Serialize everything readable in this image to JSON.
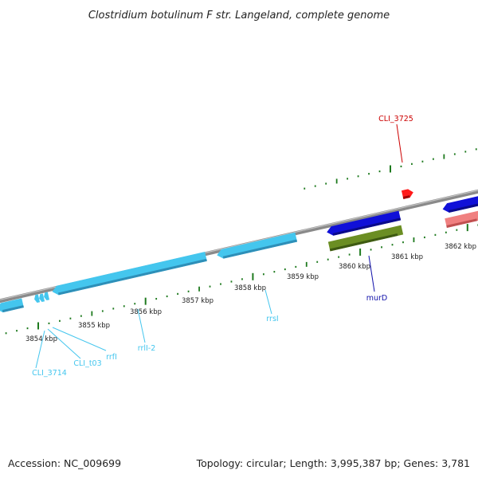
{
  "title": "Clostridium botulinum F str. Langeland, complete genome",
  "footer": {
    "accession": "Accession: NC_009699",
    "info": "Topology: circular; Length: 3,995,387 bp; Genes: 3,781"
  },
  "ticks": {
    "unit": "kbp",
    "labels": [
      "3854 kbp",
      "3855 kbp",
      "3856 kbp",
      "3857 kbp",
      "3858 kbp",
      "3859 kbp",
      "3860 kbp",
      "3861 kbp",
      "3862 kbp"
    ]
  },
  "colors": {
    "backbone": "#8a8a8a",
    "tick": "#1e7a1e",
    "rna": "#44c6ee",
    "cds": "#1010d8",
    "other_cds": "#6b8e23",
    "trna": "#ff1a1a",
    "pink": "#f08080"
  },
  "features": [
    {
      "label": "CLI_3714",
      "color": "#44c6ee"
    },
    {
      "label": "CLI_t03",
      "color": "#44c6ee"
    },
    {
      "label": "rrfI",
      "color": "#44c6ee"
    },
    {
      "label": "rrlI-2",
      "color": "#44c6ee"
    },
    {
      "label": "rrsI",
      "color": "#44c6ee"
    },
    {
      "label": "murD",
      "color": "#1010aa"
    },
    {
      "label": "CLI_3725",
      "color": "#cc0000"
    }
  ]
}
